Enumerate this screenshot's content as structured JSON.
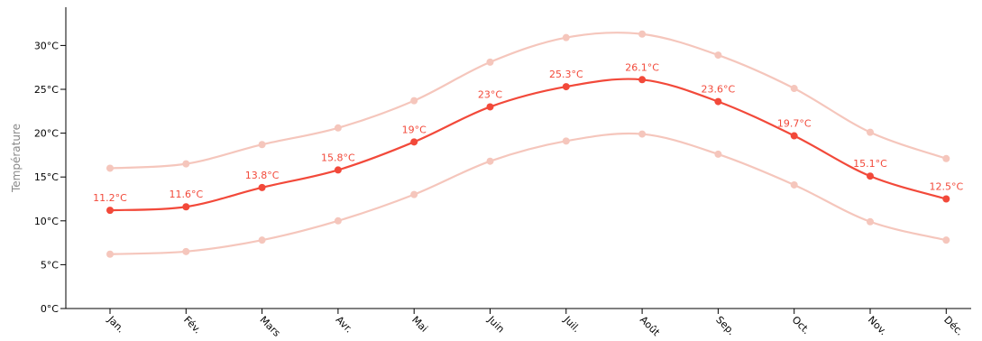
{
  "chart_data": {
    "type": "line",
    "ylabel": "Température",
    "ylim": [
      0,
      35
    ],
    "yticks": [
      0,
      5,
      10,
      15,
      20,
      25,
      30
    ],
    "ytick_labels": [
      "0°C",
      "5°C",
      "10°C",
      "15°C",
      "20°C",
      "25°C",
      "30°C"
    ],
    "categories": [
      "Jan.",
      "Fév.",
      "Mars",
      "Avr.",
      "Mai",
      "Juin",
      "Juil.",
      "Août",
      "Sep.",
      "Oct.",
      "Nov.",
      "Déc."
    ],
    "series": [
      {
        "role": "high",
        "color": "#f5c6bc",
        "values": [
          16.0,
          16.5,
          18.7,
          20.6,
          23.7,
          28.1,
          30.9,
          31.3,
          28.9,
          25.1,
          20.1,
          17.1
        ]
      },
      {
        "role": "mean",
        "color": "#f2493a",
        "values": [
          11.2,
          11.6,
          13.8,
          15.8,
          19,
          23,
          25.3,
          26.1,
          23.6,
          19.7,
          15.1,
          12.5
        ],
        "labels": [
          "11.2°C",
          "11.6°C",
          "13.8°C",
          "15.8°C",
          "19°C",
          "23°C",
          "25.3°C",
          "26.1°C",
          "23.6°C",
          "19.7°C",
          "15.1°C",
          "12.5°C"
        ]
      },
      {
        "role": "low",
        "color": "#f5c6bc",
        "values": [
          6.2,
          6.5,
          7.8,
          10.0,
          13.0,
          16.8,
          19.1,
          19.9,
          17.6,
          14.1,
          9.9,
          7.8
        ]
      }
    ],
    "grid": false,
    "legend": "none"
  }
}
